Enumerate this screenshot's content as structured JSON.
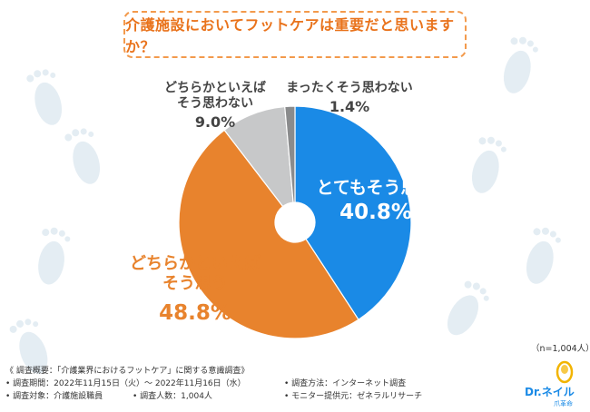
{
  "question": "介護施設においてフットケアは重要だと思いますか？",
  "chart_data": {
    "type": "pie",
    "title": "介護施設においてフットケアは重要だと思いますか？",
    "donut": true,
    "start": "12 o'clock, clockwise",
    "slices": [
      {
        "label": "とてもそう思う",
        "label_lines": [
          "とてもそう思う"
        ],
        "value": 40.8,
        "value_text": "40.8%",
        "color": "#1a8ae6"
      },
      {
        "label": "どちらかといえばそう思う",
        "label_lines": [
          "どちらかといえば",
          "そう思う"
        ],
        "value": 48.8,
        "value_text": "48.8%",
        "color": "#e8832d"
      },
      {
        "label": "どちらかといえばそう思わない",
        "label_lines": [
          "どちらかといえば",
          "そう思わない"
        ],
        "value": 9.0,
        "value_text": "9.0%",
        "color": "#c7c8c9"
      },
      {
        "label": "まったくそう思わない",
        "label_lines": [
          "まったくそう思わない"
        ],
        "value": 1.4,
        "value_text": "1.4%",
        "color": "#8a8b8c"
      }
    ]
  },
  "sample_note": "（n=1,004人）",
  "footer": {
    "r1_a": "《 調査概要：「介護業界におけるフットケア」に関する意識調査》",
    "r2_a": "• 調査期間：2022年11月15日（火）～ 2022年11月16日（水）",
    "r2_b": "• 調査方法：インターネット調査",
    "r3_a": "• 調査対象：介護施設職員",
    "r3_b": "• 調査人数：1,004人",
    "r3_c": "• モニター提供元：ゼネラルリサーチ"
  },
  "logo": {
    "brand": "Dr.ネイル",
    "sub": "爪革命"
  },
  "colors": {
    "accent": "#e9731c",
    "blue": "#1a8ae6",
    "orange": "#e8832d",
    "footprint": "#e4edf3"
  }
}
